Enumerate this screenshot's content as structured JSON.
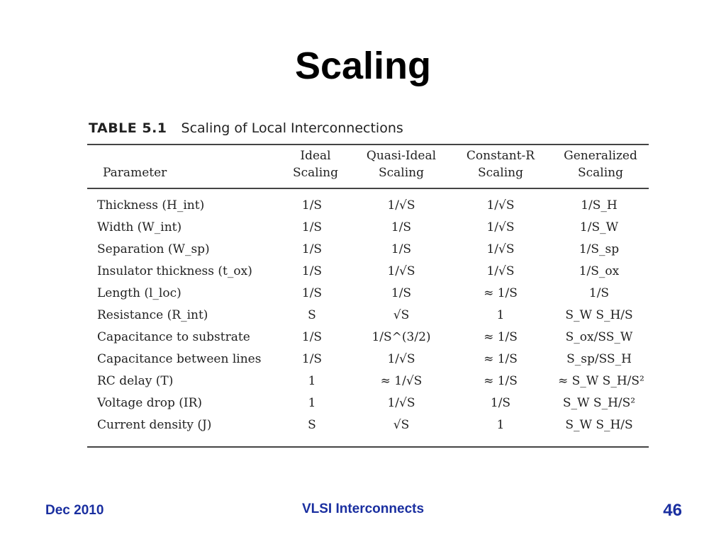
{
  "slide": {
    "title": "Scaling"
  },
  "table": {
    "number": "TABLE 5.1",
    "caption": "Scaling of Local Interconnections",
    "headers": {
      "param": "Parameter",
      "c1": [
        "Ideal",
        "Scaling"
      ],
      "c2": [
        "Quasi-Ideal",
        "Scaling"
      ],
      "c3": [
        "Constant-R",
        "Scaling"
      ],
      "c4": [
        "Generalized",
        "Scaling"
      ]
    },
    "rows": [
      [
        "Thickness (H_int)",
        "1/S",
        "1/√S",
        "1/√S",
        "1/S_H"
      ],
      [
        "Width (W_int)",
        "1/S",
        "1/S",
        "1/√S",
        "1/S_W"
      ],
      [
        "Separation (W_sp)",
        "1/S",
        "1/S",
        "1/√S",
        "1/S_sp"
      ],
      [
        "Insulator thickness (t_ox)",
        "1/S",
        "1/√S",
        "1/√S",
        "1/S_ox"
      ],
      [
        "Length (l_loc)",
        "1/S",
        "1/S",
        "≈ 1/S",
        "1/S"
      ],
      [
        "Resistance (R_int)",
        "S",
        "√S",
        "1",
        "S_W S_H/S"
      ],
      [
        "Capacitance to substrate",
        "1/S",
        "1/S^(3/2)",
        "≈ 1/S",
        "S_ox/SS_W"
      ],
      [
        "Capacitance between lines",
        "1/S",
        "1/√S",
        "≈ 1/S",
        "S_sp/SS_H"
      ],
      [
        "RC delay (T)",
        "1",
        "≈ 1/√S",
        "≈ 1/S",
        "≈ S_W S_H/S²"
      ],
      [
        "Voltage drop (IR)",
        "1",
        "1/√S",
        "1/S",
        "S_W S_H/S²"
      ],
      [
        "Current density (J)",
        "S",
        "√S",
        "1",
        "S_W S_H/S"
      ]
    ]
  },
  "footer": {
    "date": "Dec 2010",
    "course": "VLSI Interconnects",
    "page": "46"
  }
}
